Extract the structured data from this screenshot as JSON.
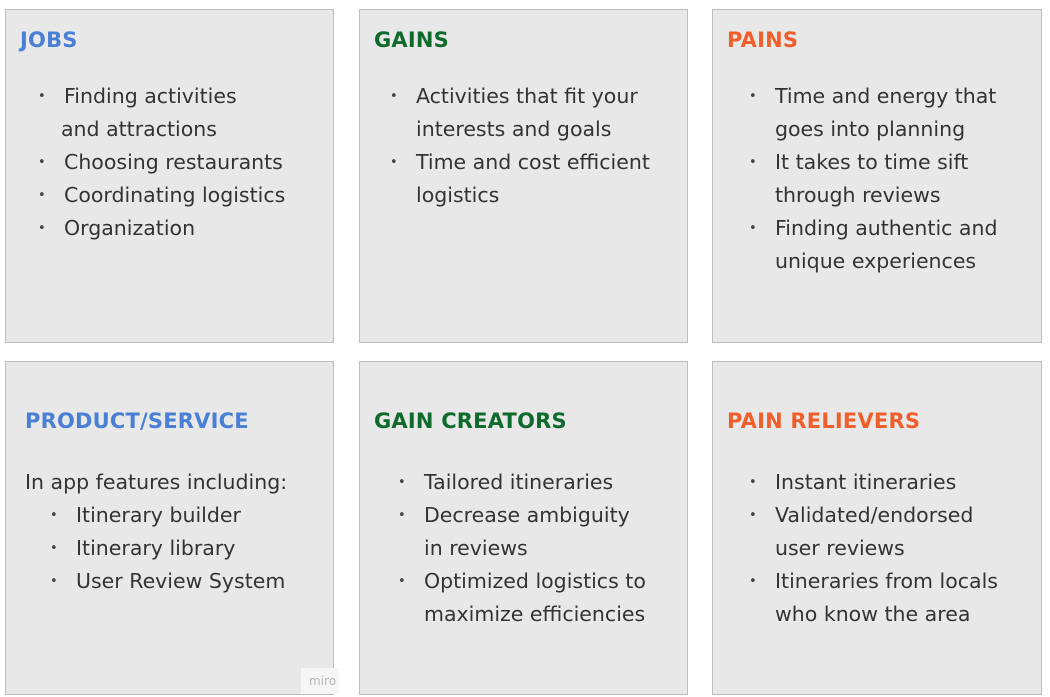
{
  "colors": {
    "blue": "#4a7fd6",
    "green": "#0f6b2c",
    "orange": "#f05f2b",
    "card_bg": "#e8e8e8"
  },
  "jobs": {
    "title": "JOBS",
    "items": [
      "Finding activities",
      "and attractions",
      "Choosing restaurants",
      "Coordinating logistics",
      "Organization"
    ]
  },
  "gains": {
    "title": "GAINS",
    "items": [
      "Activities that fit your",
      "interests and goals",
      "Time and cost efficient",
      "logistics"
    ]
  },
  "pains": {
    "title": "PAINS",
    "items": [
      "Time and energy that",
      "goes into planning",
      "It takes to time sift",
      "through reviews",
      "Finding authentic and",
      "unique experiences"
    ]
  },
  "product": {
    "title": "PRODUCT/SERVICE",
    "lead": "In app features including:",
    "items": [
      "Itinerary builder",
      "Itinerary library",
      "User Review System"
    ]
  },
  "gain_creators": {
    "title": "GAIN CREATORS",
    "items": [
      "Tailored itineraries",
      "Decrease ambiguity",
      "in reviews",
      "Optimized logistics to",
      "maximize efficiencies"
    ]
  },
  "pain_relievers": {
    "title": "PAIN RELIEVERS",
    "items": [
      "Instant itineraries",
      "Validated/endorsed",
      "user reviews",
      "Itineraries from locals",
      "who know the area"
    ]
  },
  "watermark": "miro"
}
